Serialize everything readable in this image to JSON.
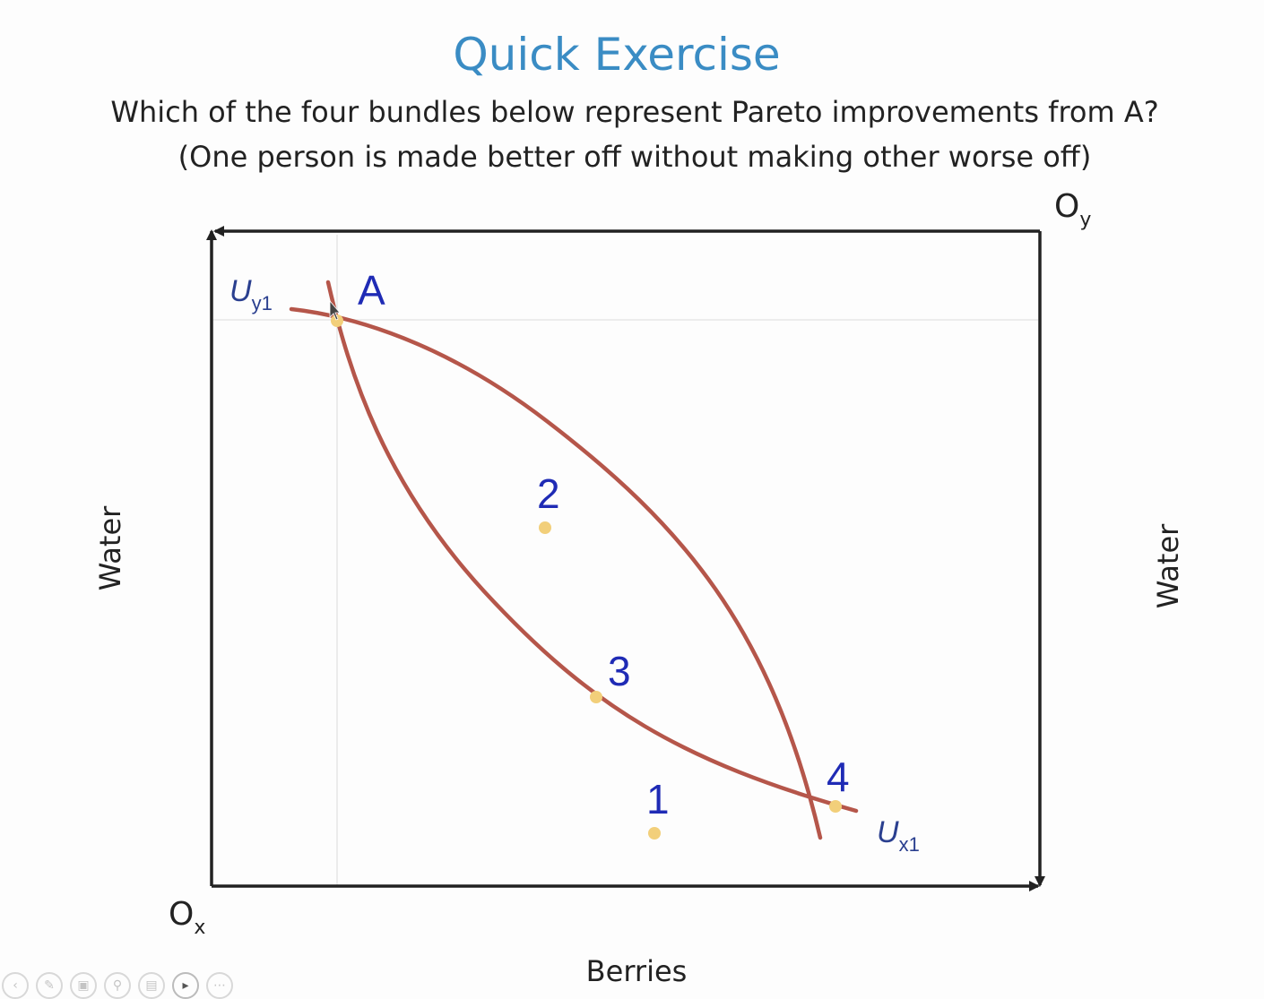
{
  "slide": {
    "title": "Quick Exercise",
    "question_line1": "Which of the four bundles below represent Pareto improvements from A?",
    "question_line2": "(One person is made better off without making other worse off)"
  },
  "diagram": {
    "x_axis_label": "Berries",
    "y_axis_left_label": "Water",
    "y_axis_right_label": "Water",
    "origin_x": {
      "main": "O",
      "sub": "x"
    },
    "origin_y": {
      "main": "O",
      "sub": "y"
    },
    "curves": [
      {
        "id": "uy1",
        "main": "U",
        "sub": "y1",
        "color": "#b5564a"
      },
      {
        "id": "ux1",
        "main": "U",
        "sub": "x1",
        "color": "#b5564a"
      }
    ],
    "points": [
      {
        "label": "A",
        "color": "#f2cf7a"
      },
      {
        "label": "2",
        "color": "#f2cf7a"
      },
      {
        "label": "3",
        "color": "#f2cf7a"
      },
      {
        "label": "1",
        "color": "#f2cf7a"
      },
      {
        "label": "4",
        "color": "#f2cf7a"
      }
    ],
    "label_color": "#1f2bb5"
  },
  "toolbar": {
    "icons": [
      "back-icon",
      "pen-icon",
      "slides-icon",
      "zoom-icon",
      "subtitles-icon",
      "camera-icon",
      "more-icon"
    ]
  }
}
